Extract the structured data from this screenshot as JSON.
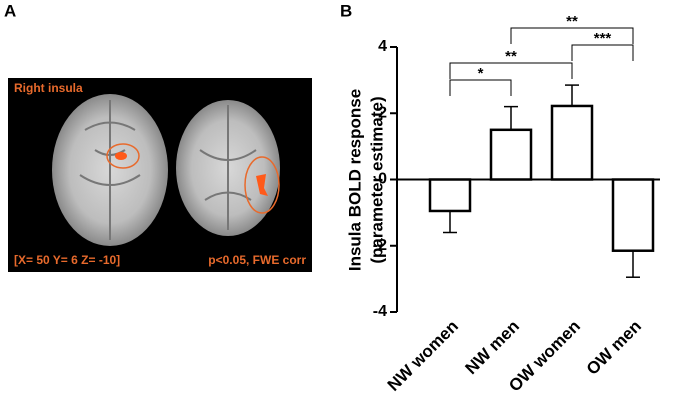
{
  "panel_a": {
    "label": "A",
    "title": "Right insula",
    "coordinates": "[X= 50 Y= 6 Z= -10]",
    "statistics": "p<0.05, FWE corr"
  },
  "chart_data": {
    "type": "bar",
    "panel_label": "B",
    "y_label": [
      "Insula BOLD response",
      "(parameter estimate)"
    ],
    "categories": [
      "NW women",
      "NW men",
      "OW women",
      "OW men"
    ],
    "values": [
      -0.95,
      1.5,
      2.22,
      -2.15
    ],
    "errors": [
      0.65,
      0.7,
      0.63,
      0.8
    ],
    "color": "#ffffff",
    "ylim": [
      -4,
      4
    ],
    "yticks": [
      -4,
      -2,
      0,
      2,
      4
    ],
    "comparisons": [
      {
        "from": 0,
        "to": 1,
        "label": "*"
      },
      {
        "from": 0,
        "to": 2,
        "label": "**"
      },
      {
        "from": 2,
        "to": 3,
        "label": "***"
      },
      {
        "from": 1,
        "to": 3,
        "label": "**"
      }
    ]
  }
}
